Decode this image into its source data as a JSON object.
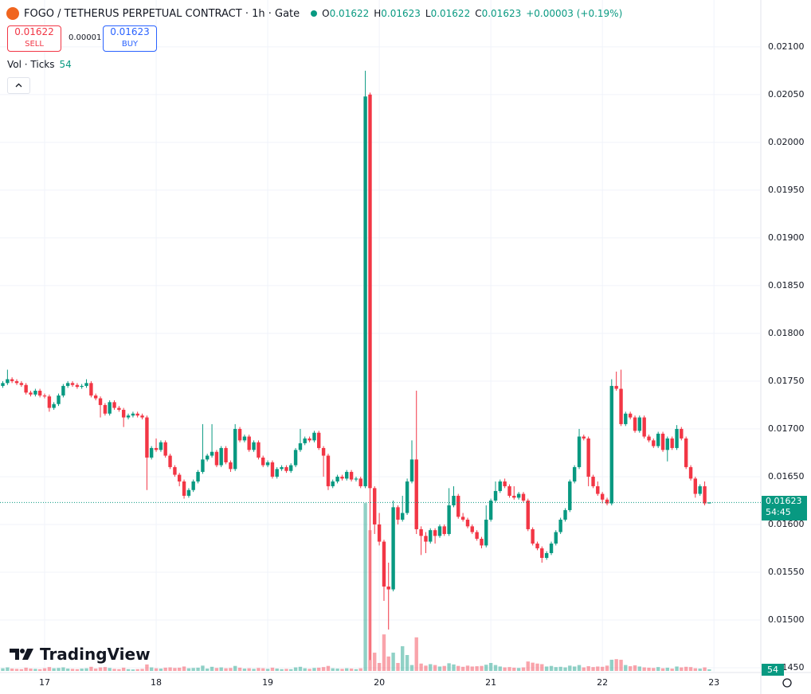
{
  "toolbar": {
    "symbol": "FOGO / TETHERUS PERPETUAL CONTRACT · 1h · Gate",
    "ohlc_labels": [
      "O",
      "H",
      "L",
      "C"
    ],
    "change": "+0.00003 (+0.19%)",
    "sell_price": 0.01622,
    "sell_label": "SELL",
    "spread": "0.00001",
    "buy_price": 0.01623,
    "buy_label": "BUY",
    "volume_label": "Vol · Ticks",
    "countdown": "54:45",
    "brand": "TradingView"
  },
  "chart_data": {
    "type": "candlestick",
    "up_color": "#089981",
    "down_color": "#f23645",
    "grid": true,
    "xlim": [
      16.6,
      23.42
    ],
    "xticks": [
      17,
      18,
      19,
      20,
      21,
      22,
      23
    ],
    "ylim": [
      0.01445,
      0.02149
    ],
    "yticks": [
      {
        "value": 0.0145,
        "label": "0.01450"
      },
      {
        "value": 0.015,
        "label": "0.01500"
      },
      {
        "value": 0.0155,
        "label": "0.01550"
      },
      {
        "value": 0.016,
        "label": "0.01600"
      },
      {
        "value": 0.0165,
        "label": "0.01650"
      },
      {
        "value": 0.017,
        "label": "0.01700"
      },
      {
        "value": 0.0175,
        "label": "0.01750"
      },
      {
        "value": 0.018,
        "label": "0.01800"
      },
      {
        "value": 0.0185,
        "label": "0.01850"
      },
      {
        "value": 0.019,
        "label": "0.01900"
      },
      {
        "value": 0.0195,
        "label": "0.01950"
      },
      {
        "value": 0.02,
        "label": "0.02000"
      },
      {
        "value": 0.0205,
        "label": "0.02050"
      },
      {
        "value": 0.021,
        "label": "0.02100"
      }
    ],
    "volume_ylim": [
      0,
      6000
    ],
    "x": [
      16.625,
      16.667,
      16.708,
      16.75,
      16.792,
      16.833,
      16.875,
      16.917,
      16.958,
      17,
      17.042,
      17.083,
      17.125,
      17.167,
      17.208,
      17.25,
      17.292,
      17.333,
      17.375,
      17.417,
      17.458,
      17.5,
      17.542,
      17.583,
      17.625,
      17.667,
      17.708,
      17.75,
      17.792,
      17.833,
      17.875,
      17.917,
      17.958,
      18,
      18.042,
      18.083,
      18.125,
      18.167,
      18.208,
      18.25,
      18.292,
      18.333,
      18.375,
      18.417,
      18.458,
      18.5,
      18.542,
      18.583,
      18.625,
      18.667,
      18.708,
      18.75,
      18.792,
      18.833,
      18.875,
      18.917,
      18.958,
      19,
      19.042,
      19.083,
      19.125,
      19.167,
      19.208,
      19.25,
      19.292,
      19.333,
      19.375,
      19.417,
      19.458,
      19.5,
      19.542,
      19.583,
      19.625,
      19.667,
      19.708,
      19.75,
      19.792,
      19.833,
      19.875,
      19.917,
      19.958,
      20,
      20.042,
      20.083,
      20.125,
      20.167,
      20.208,
      20.25,
      20.292,
      20.333,
      20.375,
      20.417,
      20.458,
      20.5,
      20.542,
      20.583,
      20.625,
      20.667,
      20.708,
      20.75,
      20.792,
      20.833,
      20.875,
      20.917,
      20.958,
      21,
      21.042,
      21.083,
      21.125,
      21.167,
      21.208,
      21.25,
      21.292,
      21.333,
      21.375,
      21.417,
      21.458,
      21.5,
      21.542,
      21.583,
      21.625,
      21.667,
      21.708,
      21.75,
      21.792,
      21.833,
      21.875,
      21.917,
      21.958,
      22,
      22.042,
      22.083,
      22.125,
      22.167,
      22.208,
      22.25,
      22.292,
      22.333,
      22.375,
      22.417,
      22.458,
      22.5,
      22.542,
      22.583,
      22.625,
      22.667,
      22.708,
      22.75,
      22.792,
      22.833,
      22.875,
      22.917,
      22.958
    ],
    "open": [
      0.01745,
      0.01748,
      0.01752,
      0.0175,
      0.01748,
      0.01746,
      0.01738,
      0.01736,
      0.0174,
      0.01735,
      0.01734,
      0.01722,
      0.01726,
      0.01735,
      0.01745,
      0.01748,
      0.01746,
      0.01744,
      0.01745,
      0.01748,
      0.01735,
      0.01732,
      0.01725,
      0.01716,
      0.01728,
      0.01722,
      0.0172,
      0.01712,
      0.01714,
      0.01716,
      0.01714,
      0.01712,
      0.0167,
      0.0168,
      0.01678,
      0.01686,
      0.01672,
      0.0166,
      0.01652,
      0.01645,
      0.0163,
      0.01636,
      0.01645,
      0.01655,
      0.01668,
      0.01672,
      0.01676,
      0.01662,
      0.0168,
      0.01665,
      0.01658,
      0.017,
      0.01688,
      0.01692,
      0.01678,
      0.01686,
      0.0167,
      0.01662,
      0.01665,
      0.0165,
      0.01658,
      0.0166,
      0.01656,
      0.01662,
      0.01678,
      0.01685,
      0.0169,
      0.01688,
      0.01696,
      0.0168,
      0.01672,
      0.0164,
      0.01645,
      0.0165,
      0.01648,
      0.01655,
      0.01647,
      0.01648,
      0.0164,
      0.0205,
      0.01638,
      0.016,
      0.01582,
      0.01535,
      0.01532,
      0.01618,
      0.01605,
      0.01612,
      0.01645,
      0.01668,
      0.01595,
      0.01588,
      0.01582,
      0.01594,
      0.01588,
      0.01598,
      0.0159,
      0.0162,
      0.0163,
      0.01608,
      0.01605,
      0.01598,
      0.01592,
      0.01585,
      0.01578,
      0.01605,
      0.01625,
      0.01635,
      0.01645,
      0.0164,
      0.0163,
      0.01628,
      0.01632,
      0.01625,
      0.01595,
      0.0158,
      0.01575,
      0.01565,
      0.0157,
      0.0158,
      0.01592,
      0.01605,
      0.01615,
      0.01645,
      0.0166,
      0.01692,
      0.0169,
      0.0165,
      0.0164,
      0.01632,
      0.01626,
      0.01622,
      0.01745,
      0.01742,
      0.01705,
      0.01716,
      0.01712,
      0.01698,
      0.01712,
      0.01692,
      0.01688,
      0.01682,
      0.01695,
      0.01678,
      0.0169,
      0.0168,
      0.017,
      0.0169,
      0.0166,
      0.01648,
      0.01632,
      0.0164,
      0.01622
    ],
    "high": [
      0.0175,
      0.01762,
      0.01754,
      0.01752,
      0.0175,
      0.01748,
      0.0174,
      0.01742,
      0.01742,
      0.01737,
      0.01736,
      0.01728,
      0.01737,
      0.01747,
      0.0175,
      0.0175,
      0.01748,
      0.01747,
      0.01752,
      0.0175,
      0.01737,
      0.01734,
      0.01727,
      0.0173,
      0.0173,
      0.01724,
      0.01722,
      0.01716,
      0.01718,
      0.01718,
      0.01716,
      0.01714,
      0.01682,
      0.0169,
      0.01688,
      0.01688,
      0.01674,
      0.01662,
      0.01654,
      0.01647,
      0.01638,
      0.01647,
      0.01657,
      0.01705,
      0.01674,
      0.01705,
      0.01678,
      0.01682,
      0.01682,
      0.01667,
      0.01705,
      0.01702,
      0.01694,
      0.01694,
      0.01688,
      0.01688,
      0.01672,
      0.01667,
      0.01667,
      0.0166,
      0.01662,
      0.01662,
      0.01664,
      0.0168,
      0.017,
      0.01692,
      0.01692,
      0.01698,
      0.01698,
      0.01682,
      0.01674,
      0.01647,
      0.01652,
      0.01652,
      0.01657,
      0.01657,
      0.0165,
      0.0165,
      0.02075,
      0.02052,
      0.0164,
      0.01612,
      0.01584,
      0.0156,
      0.01625,
      0.0162,
      0.0163,
      0.01648,
      0.01688,
      0.0174,
      0.01598,
      0.01592,
      0.01596,
      0.01596,
      0.016,
      0.016,
      0.01638,
      0.0164,
      0.01632,
      0.01612,
      0.01607,
      0.016,
      0.01594,
      0.01587,
      0.0162,
      0.01627,
      0.01645,
      0.01647,
      0.01648,
      0.01642,
      0.0164,
      0.01634,
      0.01634,
      0.01627,
      0.01597,
      0.01582,
      0.01577,
      0.01572,
      0.01582,
      0.01594,
      0.01607,
      0.01617,
      0.01647,
      0.01662,
      0.017,
      0.01694,
      0.01692,
      0.01652,
      0.01645,
      0.01634,
      0.01628,
      0.01752,
      0.0176,
      0.01762,
      0.01718,
      0.01718,
      0.01714,
      0.01714,
      0.01714,
      0.01694,
      0.0169,
      0.01697,
      0.01697,
      0.01692,
      0.01692,
      0.01704,
      0.01702,
      0.01692,
      0.01662,
      0.0165,
      0.01642,
      0.01645,
      0.01623
    ],
    "low": [
      0.01743,
      0.01746,
      0.01748,
      0.01746,
      0.01744,
      0.01736,
      0.01734,
      0.01734,
      0.01733,
      0.01732,
      0.01718,
      0.0172,
      0.01724,
      0.01733,
      0.01743,
      0.01744,
      0.01742,
      0.01742,
      0.01743,
      0.01733,
      0.0173,
      0.01712,
      0.01714,
      0.01714,
      0.0172,
      0.01718,
      0.01702,
      0.0171,
      0.01712,
      0.01712,
      0.0171,
      0.01636,
      0.01668,
      0.01676,
      0.01676,
      0.0167,
      0.01658,
      0.0165,
      0.0164,
      0.01627,
      0.01628,
      0.01634,
      0.01643,
      0.01653,
      0.01666,
      0.0167,
      0.0166,
      0.0166,
      0.01663,
      0.01655,
      0.01656,
      0.01686,
      0.01686,
      0.01676,
      0.01676,
      0.01668,
      0.0166,
      0.0166,
      0.01648,
      0.01648,
      0.01656,
      0.01654,
      0.01654,
      0.0166,
      0.01676,
      0.01683,
      0.01686,
      0.01686,
      0.01678,
      0.0165,
      0.01636,
      0.01638,
      0.01643,
      0.01646,
      0.01646,
      0.01645,
      0.01645,
      0.01638,
      0.01638,
      0.01458,
      0.0159,
      0.01578,
      0.0152,
      0.0149,
      0.0153,
      0.016,
      0.01603,
      0.0161,
      0.01643,
      0.0159,
      0.01568,
      0.0157,
      0.0158,
      0.0158,
      0.01586,
      0.01588,
      0.01588,
      0.01618,
      0.01606,
      0.01603,
      0.01596,
      0.0159,
      0.01583,
      0.01575,
      0.01576,
      0.01603,
      0.01623,
      0.01633,
      0.01638,
      0.01628,
      0.01626,
      0.01626,
      0.01623,
      0.01593,
      0.01578,
      0.01573,
      0.0156,
      0.01563,
      0.01568,
      0.01578,
      0.0159,
      0.01603,
      0.01613,
      0.01643,
      0.01658,
      0.01688,
      0.0164,
      0.01638,
      0.0163,
      0.01622,
      0.0162,
      0.0162,
      0.0174,
      0.01703,
      0.01703,
      0.0171,
      0.01696,
      0.01696,
      0.0169,
      0.01686,
      0.0168,
      0.0168,
      0.01676,
      0.01666,
      0.01678,
      0.01678,
      0.01688,
      0.01658,
      0.01646,
      0.01628,
      0.0163,
      0.0162,
      0.01622
    ],
    "close": [
      0.01748,
      0.01752,
      0.0175,
      0.01748,
      0.01746,
      0.01738,
      0.01736,
      0.0174,
      0.01735,
      0.01734,
      0.01722,
      0.01726,
      0.01735,
      0.01745,
      0.01748,
      0.01746,
      0.01744,
      0.01745,
      0.01748,
      0.01735,
      0.01732,
      0.01725,
      0.01716,
      0.01728,
      0.01722,
      0.0172,
      0.01712,
      0.01714,
      0.01716,
      0.01714,
      0.01712,
      0.0167,
      0.0168,
      0.01678,
      0.01686,
      0.01672,
      0.0166,
      0.01652,
      0.01645,
      0.0163,
      0.01636,
      0.01645,
      0.01655,
      0.01668,
      0.01672,
      0.01676,
      0.01662,
      0.0168,
      0.01665,
      0.01658,
      0.017,
      0.01688,
      0.01692,
      0.01678,
      0.01686,
      0.0167,
      0.01662,
      0.01665,
      0.0165,
      0.01658,
      0.0166,
      0.01656,
      0.01662,
      0.01678,
      0.01685,
      0.0169,
      0.01688,
      0.01696,
      0.0168,
      0.01672,
      0.0164,
      0.01645,
      0.0165,
      0.01648,
      0.01655,
      0.01647,
      0.01648,
      0.0164,
      0.02048,
      0.01638,
      0.016,
      0.01582,
      0.01535,
      0.01532,
      0.01618,
      0.01605,
      0.01612,
      0.01645,
      0.01668,
      0.01595,
      0.01588,
      0.01582,
      0.01594,
      0.01588,
      0.01598,
      0.0159,
      0.0162,
      0.0163,
      0.01608,
      0.01605,
      0.01598,
      0.01592,
      0.01585,
      0.01578,
      0.01605,
      0.01625,
      0.01635,
      0.01645,
      0.0164,
      0.0163,
      0.01628,
      0.01632,
      0.01625,
      0.01595,
      0.0158,
      0.01575,
      0.01565,
      0.0157,
      0.0158,
      0.01592,
      0.01605,
      0.01615,
      0.01645,
      0.0166,
      0.01692,
      0.0169,
      0.0165,
      0.0164,
      0.01632,
      0.01626,
      0.01622,
      0.01745,
      0.01742,
      0.01705,
      0.01716,
      0.01712,
      0.01698,
      0.01712,
      0.01692,
      0.01688,
      0.01682,
      0.01695,
      0.01678,
      0.0169,
      0.0168,
      0.017,
      0.0169,
      0.0166,
      0.01648,
      0.01632,
      0.0164,
      0.01622,
      0.01623
    ],
    "volume": [
      90,
      120,
      80,
      70,
      60,
      110,
      80,
      70,
      60,
      90,
      130,
      90,
      100,
      120,
      80,
      70,
      60,
      80,
      90,
      140,
      80,
      120,
      130,
      100,
      70,
      60,
      110,
      60,
      50,
      60,
      70,
      220,
      120,
      90,
      80,
      110,
      120,
      100,
      110,
      150,
      90,
      100,
      110,
      180,
      80,
      140,
      100,
      120,
      90,
      100,
      170,
      110,
      80,
      90,
      70,
      100,
      90,
      70,
      110,
      80,
      60,
      70,
      60,
      120,
      140,
      90,
      70,
      100,
      110,
      130,
      170,
      90,
      80,
      70,
      90,
      80,
      60,
      90,
      5700,
      4780,
      620,
      270,
      1240,
      490,
      620,
      270,
      840,
      540,
      200,
      1140,
      250,
      180,
      230,
      200,
      150,
      170,
      260,
      220,
      170,
      140,
      180,
      150,
      160,
      170,
      210,
      270,
      200,
      150,
      120,
      130,
      110,
      100,
      120,
      320,
      280,
      250,
      230,
      150,
      170,
      130,
      140,
      120,
      180,
      150,
      200,
      120,
      160,
      130,
      150,
      140,
      180,
      380,
      400,
      380,
      200,
      160,
      190,
      150,
      120,
      110,
      100,
      130,
      90,
      110,
      80,
      150,
      120,
      140,
      130,
      90,
      80,
      120,
      54
    ]
  }
}
